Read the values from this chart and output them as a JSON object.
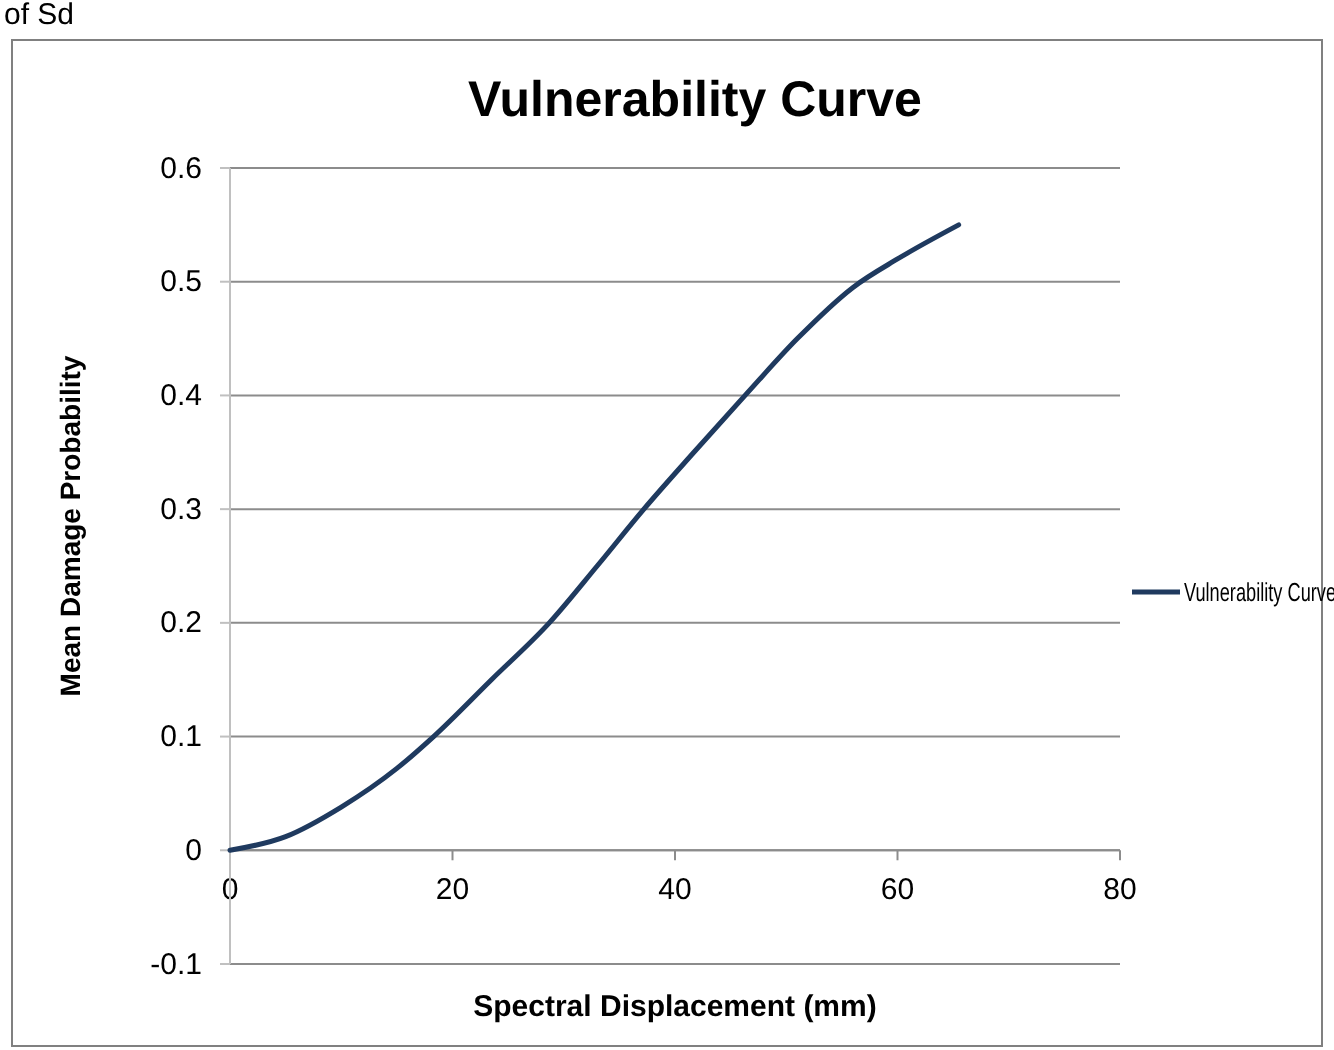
{
  "chart_data": {
    "type": "line",
    "title": "Vulnerability Curve",
    "xlabel": "Spectral Displacement (mm)",
    "ylabel": "Mean Damage Probability",
    "annotations": [
      "of Sd"
    ],
    "series": [
      {
        "name": "Vulnerability Curve",
        "color": "#1f3a5f",
        "x": [
          0,
          5,
          10,
          15,
          18.3,
          23.5,
          28.7,
          33,
          37.2,
          41.7,
          46.3,
          51,
          56,
          60,
          65.5
        ],
        "values": [
          0,
          0.012,
          0.038,
          0.072,
          0.1,
          0.15,
          0.2,
          0.25,
          0.3,
          0.35,
          0.4,
          0.45,
          0.495,
          0.52,
          0.55
        ]
      }
    ],
    "xlim": [
      0,
      80
    ],
    "xticks": [
      0,
      20,
      40,
      60,
      80
    ],
    "ylim": [
      -0.1,
      0.6
    ],
    "yticks": [
      -0.1,
      0,
      0.1,
      0.2,
      0.3,
      0.4,
      0.5,
      0.6
    ],
    "grid": "y",
    "legend": "right",
    "marker": "none",
    "line_style": "solid"
  }
}
